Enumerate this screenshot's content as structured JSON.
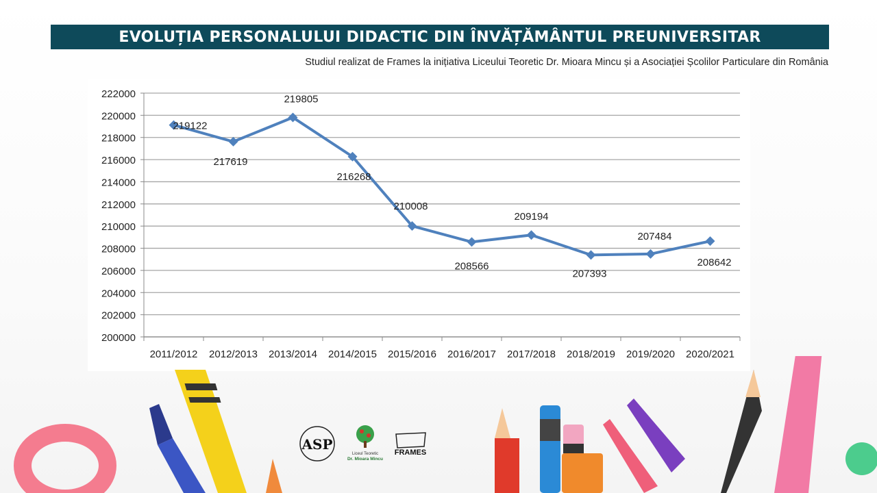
{
  "title": "EVOLUȚIA PERSONALULUI DIDACTIC DIN ÎNVĂȚĂMÂNTUL PREUNIVERSITAR",
  "subtitle": "Studiul realizat de  Frames la inițiativa Liceului Teoretic Dr. Mioara Mincu și a Asociației Școlilor Particulare din România",
  "colors": {
    "title_bar": "#0e4a5a",
    "line": "#4f81bd",
    "grid": "#a6a6a6"
  },
  "logos": {
    "asp": "ASP",
    "liceu_line1": "Liceul Teoretic",
    "liceu_line2": "Dr. Mioara Mincu",
    "frames": "FRAMES"
  },
  "chart_data": {
    "type": "line",
    "categories": [
      "2011/2012",
      "2012/2013",
      "2013/2014",
      "2014/2015",
      "2015/2016",
      "2016/2017",
      "2017/2018",
      "2018/2019",
      "2019/2020",
      "2020/2021"
    ],
    "series": [
      {
        "values": [
          219122,
          217619,
          219805,
          216268,
          210008,
          208566,
          209194,
          207393,
          207484,
          208642
        ]
      }
    ],
    "ylim": [
      200000,
      222000
    ],
    "yticks": [
      200000,
      202000,
      204000,
      206000,
      208000,
      210000,
      212000,
      214000,
      216000,
      218000,
      220000,
      222000
    ],
    "grid": true,
    "legend": "none",
    "data_labels": true
  }
}
